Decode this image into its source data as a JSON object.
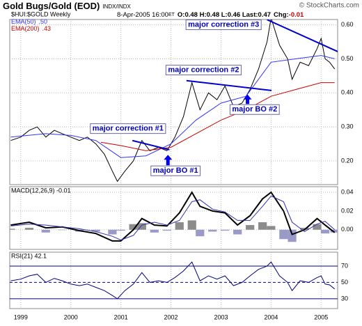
{
  "chart_data": [
    {
      "type": "line",
      "title": "Gold Bugs/Gold (EOD)",
      "subtitle": "INDX/INDX",
      "copyright": "© StockCharts.com",
      "symbol": "$HUI:$GOLD Weekly",
      "date": "8-Apr-2005 16:00",
      "tz": "ET",
      "quote": "O:0.48 H:0.48 L:0.46 Last:0.47",
      "chg_label": "Chg:",
      "chg": -0.01,
      "x": [
        1998.8,
        1999.0,
        1999.17,
        1999.33,
        1999.5,
        1999.67,
        1999.83,
        2000.0,
        2000.17,
        2000.33,
        2000.5,
        2000.67,
        2000.83,
        2000.93,
        2001.08,
        2001.25,
        2001.42,
        2001.58,
        2001.75,
        2001.92,
        2002.08,
        2002.25,
        2002.42,
        2002.58,
        2002.75,
        2002.92,
        2003.08,
        2003.25,
        2003.42,
        2003.58,
        2003.75,
        2003.92,
        2004.0,
        2004.17,
        2004.33,
        2004.42,
        2004.58,
        2004.75,
        2004.92,
        2005.0,
        2005.08,
        2005.17,
        2005.27
      ],
      "series": [
        {
          "name": "$HUI:$GOLD",
          "color": "#000000",
          "values": [
            0.26,
            0.27,
            0.29,
            0.3,
            0.27,
            0.29,
            0.28,
            0.27,
            0.26,
            0.27,
            0.25,
            0.22,
            0.17,
            0.14,
            0.17,
            0.2,
            0.26,
            0.23,
            0.24,
            0.23,
            0.27,
            0.33,
            0.43,
            0.35,
            0.4,
            0.38,
            0.42,
            0.36,
            0.37,
            0.41,
            0.47,
            0.55,
            0.62,
            0.54,
            0.5,
            0.44,
            0.49,
            0.48,
            0.53,
            0.56,
            0.5,
            0.49,
            0.47
          ]
        },
        {
          "name": "EMA(50)",
          "last": ".50",
          "color": "#3333ff",
          "x": [
            1998.8,
            1999.5,
            2000.0,
            2000.5,
            2001.0,
            2001.5,
            2002.0,
            2002.5,
            2003.0,
            2003.5,
            2004.0,
            2004.5,
            2005.0,
            2005.27
          ],
          "values": [
            0.27,
            0.28,
            0.275,
            0.26,
            0.21,
            0.215,
            0.25,
            0.32,
            0.37,
            0.39,
            0.49,
            0.5,
            0.51,
            0.5
          ]
        },
        {
          "name": "EMA(200)",
          "last": ".43",
          "color": "#cc0000",
          "x": [
            2000.6,
            2001.0,
            2001.5,
            2002.0,
            2002.5,
            2003.0,
            2003.5,
            2004.0,
            2004.5,
            2005.0,
            2005.27
          ],
          "values": [
            0.255,
            0.245,
            0.23,
            0.24,
            0.28,
            0.32,
            0.35,
            0.39,
            0.41,
            0.43,
            0.43
          ]
        }
      ],
      "ylim": [
        0.1305,
        0.6155
      ],
      "yticks": [
        {
          "value": 0.2,
          "label": "0.20"
        },
        {
          "value": 0.3,
          "label": "0.30"
        },
        {
          "value": 0.4,
          "label": "0.40"
        },
        {
          "value": 0.5,
          "label": "0.50"
        },
        {
          "value": 0.6,
          "label": "0.60"
        }
      ],
      "grid": true,
      "trendlines": [
        {
          "x": [
            2001.23,
            2001.97
          ],
          "y": [
            0.26,
            0.233
          ],
          "color": "#0000cc"
        },
        {
          "x": [
            2002.31,
            2004.01
          ],
          "y": [
            0.436,
            0.407
          ],
          "color": "#0000cc"
        },
        {
          "x": [
            2003.92,
            2005.5
          ],
          "y": [
            0.615,
            0.51
          ],
          "color": "#0000cc"
        }
      ],
      "annotations": [
        {
          "text": "major correction #1",
          "x": 2000.39,
          "y": 0.295
        },
        {
          "text": "major correction #2",
          "x": 2001.9,
          "y": 0.467
        },
        {
          "text": "major correction #3",
          "x": 2002.3,
          "y": 0.6
        },
        {
          "text": "major BO #1",
          "x": 2001.6,
          "y": 0.171,
          "arrow": [
            2001.94,
            0.218
          ]
        },
        {
          "text": "major BO #2",
          "x": 2003.18,
          "y": 0.351,
          "arrow": [
            2003.53,
            0.395
          ]
        }
      ]
    },
    {
      "type": "macd",
      "legend": "MACD(12,26,9) -0.01",
      "x": [
        1998.8,
        1999.17,
        1999.5,
        1999.83,
        2000.17,
        2000.5,
        2000.83,
        2001.0,
        2001.25,
        2001.42,
        2001.67,
        2001.92,
        2002.17,
        2002.42,
        2002.58,
        2002.83,
        2003.08,
        2003.33,
        2003.58,
        2003.83,
        2004.0,
        2004.25,
        2004.42,
        2004.67,
        2004.92,
        2005.08,
        2005.27
      ],
      "series": [
        {
          "name": "MACD",
          "color": "#000000",
          "values": [
            0.005,
            0.008,
            0.002,
            0.003,
            -0.001,
            -0.004,
            -0.012,
            -0.012,
            0.0,
            0.012,
            0.005,
            0.004,
            0.018,
            0.04,
            0.025,
            0.02,
            0.018,
            0.005,
            0.015,
            0.033,
            0.04,
            0.02,
            -0.005,
            0.0,
            0.012,
            0.005,
            -0.003
          ]
        },
        {
          "name": "Signal",
          "color": "#3333aa",
          "values": [
            0.004,
            0.006,
            0.005,
            0.003,
            0.001,
            -0.002,
            -0.007,
            -0.011,
            -0.006,
            0.005,
            0.008,
            0.005,
            0.01,
            0.03,
            0.032,
            0.022,
            0.019,
            0.01,
            0.01,
            0.025,
            0.036,
            0.03,
            0.008,
            -0.002,
            0.006,
            0.009,
            0.0
          ]
        }
      ],
      "histogram": {
        "color": "#8c8c8c",
        "negative_color": "#9a9ac8",
        "values": [
          0.001,
          0.002,
          -0.003,
          0,
          -0.002,
          -0.002,
          -0.005,
          -0.001,
          0.006,
          0.007,
          -0.003,
          -0.001,
          0.008,
          0.01,
          -0.007,
          -0.002,
          -0.001,
          -0.005,
          0.005,
          0.008,
          0.004,
          -0.01,
          -0.013,
          0.002,
          0.006,
          -0.004,
          -0.003
        ]
      },
      "ylim": [
        -0.021,
        0.046
      ],
      "yticks": [
        {
          "value": 0,
          "label": "0.00"
        },
        0.02,
        0.04
      ],
      "grid": true
    },
    {
      "type": "rsi",
      "legend": "RSI(21) 42.1",
      "color": "#000080",
      "x": [
        1998.8,
        1999.0,
        1999.17,
        1999.33,
        1999.5,
        1999.67,
        1999.83,
        2000.0,
        2000.17,
        2000.33,
        2000.5,
        2000.67,
        2000.83,
        2000.93,
        2001.08,
        2001.25,
        2001.42,
        2001.58,
        2001.75,
        2001.92,
        2002.08,
        2002.25,
        2002.42,
        2002.58,
        2002.75,
        2002.92,
        2003.08,
        2003.25,
        2003.42,
        2003.58,
        2003.75,
        2003.92,
        2004.0,
        2004.17,
        2004.33,
        2004.42,
        2004.58,
        2004.75,
        2004.92,
        2005.0,
        2005.08,
        2005.17,
        2005.27
      ],
      "values": [
        52,
        54,
        58,
        60,
        50,
        55,
        52,
        48,
        46,
        48,
        44,
        40,
        34,
        30,
        40,
        48,
        62,
        50,
        52,
        50,
        56,
        64,
        75,
        52,
        58,
        54,
        58,
        46,
        50,
        58,
        66,
        70,
        75,
        58,
        50,
        40,
        52,
        50,
        56,
        58,
        48,
        47,
        42
      ],
      "ylim": [
        18,
        87
      ],
      "yticks": [
        30,
        50,
        70
      ],
      "line_styles": [
        "solid",
        "dashed",
        "solid"
      ],
      "xlim": [
        1998.78,
        2005.33
      ],
      "xticks": [
        1999,
        2000,
        2001,
        2002,
        2003,
        2004,
        2005
      ]
    }
  ]
}
